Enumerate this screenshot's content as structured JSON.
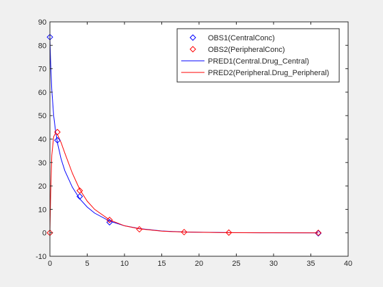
{
  "chart_data": {
    "type": "line",
    "title": "",
    "xlabel": "",
    "ylabel": "",
    "xlim": [
      0,
      40
    ],
    "ylim": [
      -10,
      90
    ],
    "xticks": [
      0,
      5,
      10,
      15,
      20,
      25,
      30,
      35,
      40
    ],
    "yticks": [
      -10,
      0,
      10,
      20,
      30,
      40,
      50,
      60,
      70,
      80,
      90
    ],
    "grid": false,
    "legend_position": "top-right",
    "observed": [
      {
        "name": "OBS1(CentralConc)",
        "color": "#0000ff",
        "marker": "diamond",
        "x": [
          0,
          1,
          4,
          8,
          36
        ],
        "y": [
          83.5,
          39.5,
          15.5,
          4.5,
          -0.2
        ]
      },
      {
        "name": "OBS2(PeripheralConc)",
        "color": "#ff0000",
        "marker": "diamond",
        "x": [
          0,
          1,
          4,
          8,
          12,
          18,
          24,
          36
        ],
        "y": [
          0,
          43,
          18,
          5.5,
          1.5,
          0.3,
          0.1,
          0
        ]
      }
    ],
    "series": [
      {
        "name": "PRED1(Central.Drug_Central)",
        "color": "#0000ff",
        "x": [
          0,
          0.1,
          0.25,
          0.5,
          0.75,
          1,
          1.5,
          2,
          3,
          4,
          5,
          6,
          8,
          10,
          12,
          15,
          18,
          24,
          30,
          36
        ],
        "y": [
          83,
          72,
          61,
          50,
          43.5,
          38.5,
          31.5,
          26.5,
          19.5,
          14.5,
          11,
          8.4,
          5,
          3,
          1.8,
          0.8,
          0.35,
          0.08,
          0.02,
          0
        ]
      },
      {
        "name": "PRED2(Peripheral.Drug_Peripheral)",
        "color": "#ff0000",
        "x": [
          0,
          0.1,
          0.25,
          0.5,
          0.75,
          1,
          1.5,
          2,
          3,
          4,
          5,
          6,
          8,
          10,
          12,
          15,
          18,
          24,
          30,
          36
        ],
        "y": [
          0,
          17,
          33,
          41,
          42.5,
          42,
          38.5,
          34,
          25.5,
          18.5,
          13.5,
          10,
          5.5,
          3,
          1.7,
          0.7,
          0.3,
          0.07,
          0.02,
          0
        ]
      }
    ]
  }
}
